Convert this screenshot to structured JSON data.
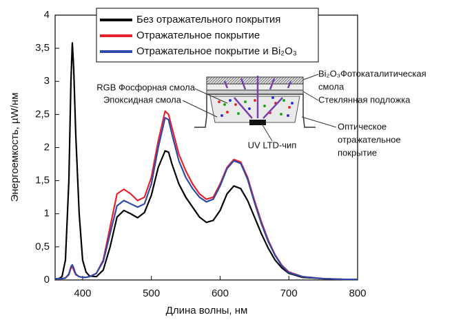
{
  "chart_data": {
    "type": "line",
    "xlabel": "Длина волны, нм",
    "ylabel": "Энергоемкость, µW/нм",
    "x": [
      360,
      365,
      370,
      375,
      380,
      383,
      385,
      387,
      390,
      395,
      400,
      405,
      410,
      420,
      430,
      440,
      450,
      460,
      470,
      480,
      490,
      500,
      510,
      520,
      525,
      530,
      540,
      550,
      560,
      570,
      580,
      590,
      600,
      610,
      620,
      630,
      640,
      650,
      660,
      670,
      680,
      690,
      700,
      720,
      750,
      780,
      800
    ],
    "series": [
      {
        "name": "Без отражательного покрытия",
        "color": "#000000",
        "values": [
          0.02,
          0.02,
          0.05,
          0.3,
          1.5,
          3.0,
          3.58,
          3.2,
          2.2,
          1.0,
          0.3,
          0.12,
          0.06,
          0.05,
          0.15,
          0.5,
          0.95,
          1.05,
          1.0,
          0.94,
          1.02,
          1.28,
          1.7,
          1.95,
          1.93,
          1.75,
          1.45,
          1.25,
          1.1,
          0.95,
          0.87,
          0.9,
          1.05,
          1.3,
          1.42,
          1.38,
          1.2,
          0.95,
          0.7,
          0.48,
          0.3,
          0.18,
          0.1,
          0.04,
          0.02,
          0.01,
          0.01
        ]
      },
      {
        "name": "Отражательное покрытие",
        "color": "#e8202a",
        "values": [
          0.02,
          0.02,
          0.02,
          0.03,
          0.08,
          0.18,
          0.2,
          0.15,
          0.08,
          0.05,
          0.04,
          0.04,
          0.05,
          0.1,
          0.3,
          0.8,
          1.3,
          1.37,
          1.3,
          1.2,
          1.25,
          1.55,
          2.1,
          2.55,
          2.5,
          2.3,
          1.9,
          1.65,
          1.45,
          1.3,
          1.22,
          1.25,
          1.45,
          1.7,
          1.82,
          1.78,
          1.55,
          1.2,
          0.88,
          0.6,
          0.38,
          0.22,
          0.12,
          0.05,
          0.02,
          0.01,
          0.01
        ]
      },
      {
        "name": "Отражательное покрытие и Bi₂O₃",
        "color": "#2e49a8",
        "values": [
          0.02,
          0.02,
          0.02,
          0.03,
          0.09,
          0.2,
          0.23,
          0.18,
          0.09,
          0.05,
          0.04,
          0.04,
          0.05,
          0.1,
          0.28,
          0.7,
          1.12,
          1.2,
          1.15,
          1.1,
          1.15,
          1.45,
          2.0,
          2.45,
          2.42,
          2.2,
          1.8,
          1.55,
          1.38,
          1.25,
          1.18,
          1.22,
          1.42,
          1.68,
          1.8,
          1.76,
          1.52,
          1.17,
          0.85,
          0.58,
          0.37,
          0.21,
          0.11,
          0.05,
          0.02,
          0.01,
          0.01
        ]
      }
    ],
    "xlim": [
      360,
      800
    ],
    "xticks": [
      400,
      500,
      600,
      700,
      800
    ],
    "ylim": [
      0,
      4
    ],
    "yticks": [
      0,
      {
        "value": 0.5,
        "label": "0,5"
      },
      1,
      {
        "value": 1.5,
        "label": "1,5"
      },
      2,
      {
        "value": 2.5,
        "label": "2,5"
      },
      3,
      {
        "value": 3.5,
        "label": "3,5"
      },
      4
    ],
    "annotations": [
      "RGB Фосфорная смола",
      "Эпоксидная смола",
      "UV LTD-чип",
      "Bi₂O₃Фотокаталитическая",
      "смола",
      "Стеклянная подложка",
      "Оптическое",
      "отражательное",
      "покрытие"
    ]
  }
}
